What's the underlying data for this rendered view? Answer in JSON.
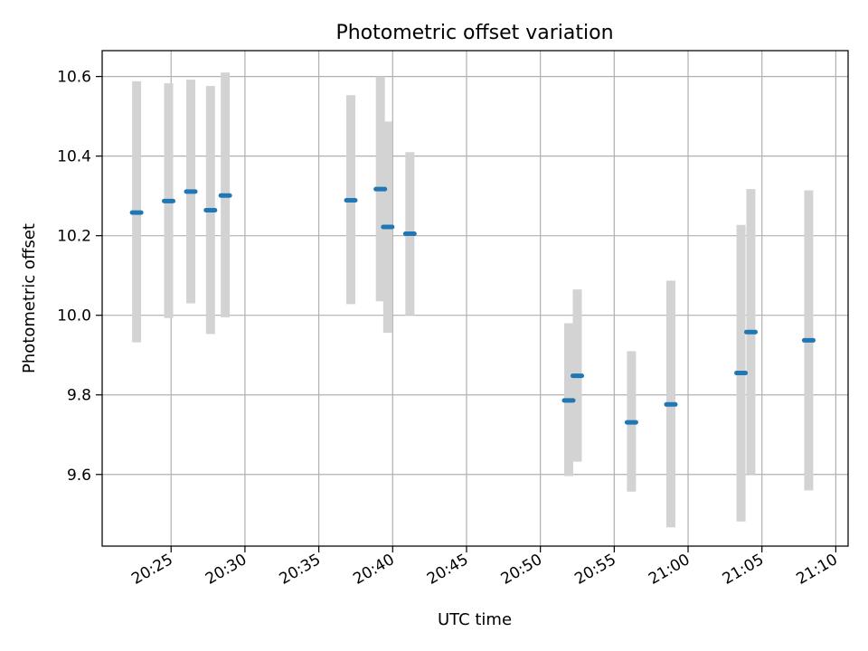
{
  "chart_data": {
    "type": "scatter",
    "title": "Photometric offset variation",
    "xlabel": "UTC time",
    "ylabel": "Photometric offset",
    "grid": true,
    "legend": "none",
    "xlim": [
      "20:20:20",
      "21:10:50"
    ],
    "ylim": [
      9.42,
      10.665
    ],
    "xticks": [
      "20:25",
      "20:30",
      "20:35",
      "20:40",
      "20:45",
      "20:50",
      "20:55",
      "21:00",
      "21:05",
      "21:10"
    ],
    "yticks": [
      9.6,
      9.8,
      10.0,
      10.2,
      10.4,
      10.6
    ],
    "colors": {
      "point": "#1f77b4",
      "errorbar": "#d3d3d3",
      "grid": "#b0b0b0"
    },
    "points": [
      {
        "x": "20:22:40",
        "y": 10.258,
        "low": 9.932,
        "high": 10.588
      },
      {
        "x": "20:24:50",
        "y": 10.287,
        "low": 9.993,
        "high": 10.583
      },
      {
        "x": "20:26:20",
        "y": 10.311,
        "low": 10.03,
        "high": 10.592
      },
      {
        "x": "20:27:40",
        "y": 10.264,
        "low": 9.953,
        "high": 10.576
      },
      {
        "x": "20:28:40",
        "y": 10.301,
        "low": 9.995,
        "high": 10.61
      },
      {
        "x": "20:37:10",
        "y": 10.289,
        "low": 10.028,
        "high": 10.553
      },
      {
        "x": "20:39:10",
        "y": 10.317,
        "low": 10.035,
        "high": 10.6
      },
      {
        "x": "20:39:40",
        "y": 10.222,
        "low": 9.956,
        "high": 10.487
      },
      {
        "x": "20:41:10",
        "y": 10.205,
        "low": 10.0,
        "high": 10.41
      },
      {
        "x": "20:51:55",
        "y": 9.786,
        "low": 9.596,
        "high": 9.98
      },
      {
        "x": "20:52:30",
        "y": 9.848,
        "low": 9.632,
        "high": 10.065
      },
      {
        "x": "20:56:10",
        "y": 9.731,
        "low": 9.557,
        "high": 9.91
      },
      {
        "x": "20:58:50",
        "y": 9.776,
        "low": 9.467,
        "high": 10.087
      },
      {
        "x": "21:03:35",
        "y": 9.855,
        "low": 9.482,
        "high": 10.227
      },
      {
        "x": "21:04:15",
        "y": 9.958,
        "low": 9.6,
        "high": 10.317
      },
      {
        "x": "21:08:10",
        "y": 9.937,
        "low": 9.56,
        "high": 10.314
      }
    ]
  }
}
